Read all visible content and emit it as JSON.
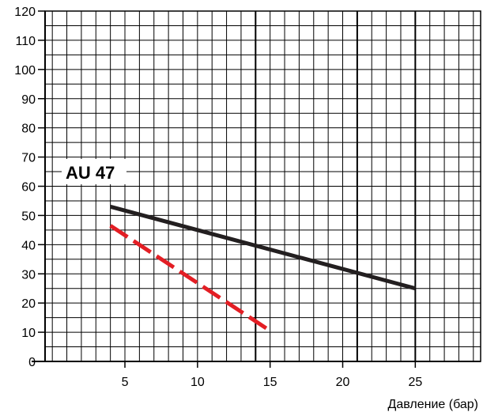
{
  "chart_data": {
    "type": "line",
    "title": "",
    "xlabel": "Давление (бар)",
    "ylabel": "",
    "xlim": [
      -0.5,
      29.5
    ],
    "ylim": [
      0,
      120
    ],
    "x_ticks": [
      5,
      10,
      15,
      20,
      25
    ],
    "y_ticks": [
      0,
      10,
      20,
      30,
      40,
      50,
      60,
      70,
      80,
      90,
      100,
      110,
      120
    ],
    "grid": true,
    "minor_grid_x_step": 1,
    "minor_grid_y_step": 5,
    "major_grid_x": [
      14,
      21,
      25
    ],
    "annotation": "AU 47",
    "series": [
      {
        "x": [
          4,
          25
        ],
        "y": [
          53,
          25
        ],
        "color": "#231f20",
        "style": "solid"
      },
      {
        "x": [
          4,
          15
        ],
        "y": [
          46.5,
          10.5
        ],
        "color": "#e31e24",
        "style": "dashed"
      }
    ]
  }
}
